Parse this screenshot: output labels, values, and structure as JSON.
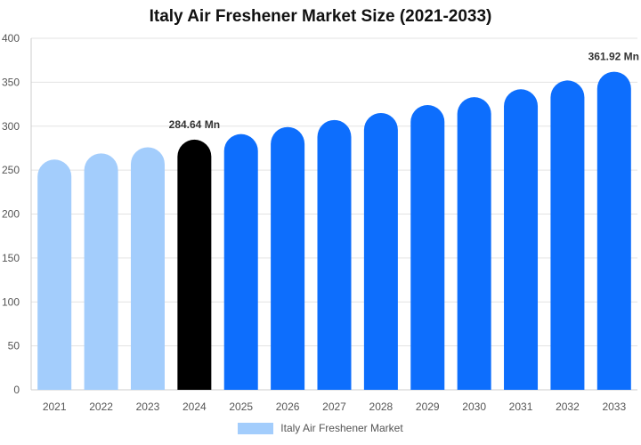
{
  "chart_data": {
    "type": "bar",
    "title": "Italy Air Freshener Market Size (2021-2033)",
    "xlabel": "",
    "ylabel": "",
    "categories": [
      "2021",
      "2022",
      "2023",
      "2024",
      "2025",
      "2026",
      "2027",
      "2028",
      "2029",
      "2030",
      "2031",
      "2032",
      "2033"
    ],
    "series": [
      {
        "name": "Italy Air Freshener Market",
        "values": [
          262,
          269,
          276,
          284.64,
          291,
          299,
          307,
          315,
          324,
          333,
          342,
          352,
          361.92
        ]
      }
    ],
    "ylim": [
      0,
      400
    ],
    "yticks": [
      0,
      50,
      100,
      150,
      200,
      250,
      300,
      350,
      400
    ],
    "grid": "horizontal",
    "legend_position": "bottom",
    "data_labels": [
      {
        "category": "2024",
        "text": "284.64 Mn"
      },
      {
        "category": "2033",
        "text": "361.92 Mn"
      }
    ],
    "bar_colors": [
      "#a3cdfc",
      "#a3cdfc",
      "#a3cdfc",
      "#000000",
      "#0d6efd",
      "#0d6efd",
      "#0d6efd",
      "#0d6efd",
      "#0d6efd",
      "#0d6efd",
      "#0d6efd",
      "#0d6efd",
      "#0d6efd"
    ],
    "legend_color": "#a3cdfc"
  }
}
